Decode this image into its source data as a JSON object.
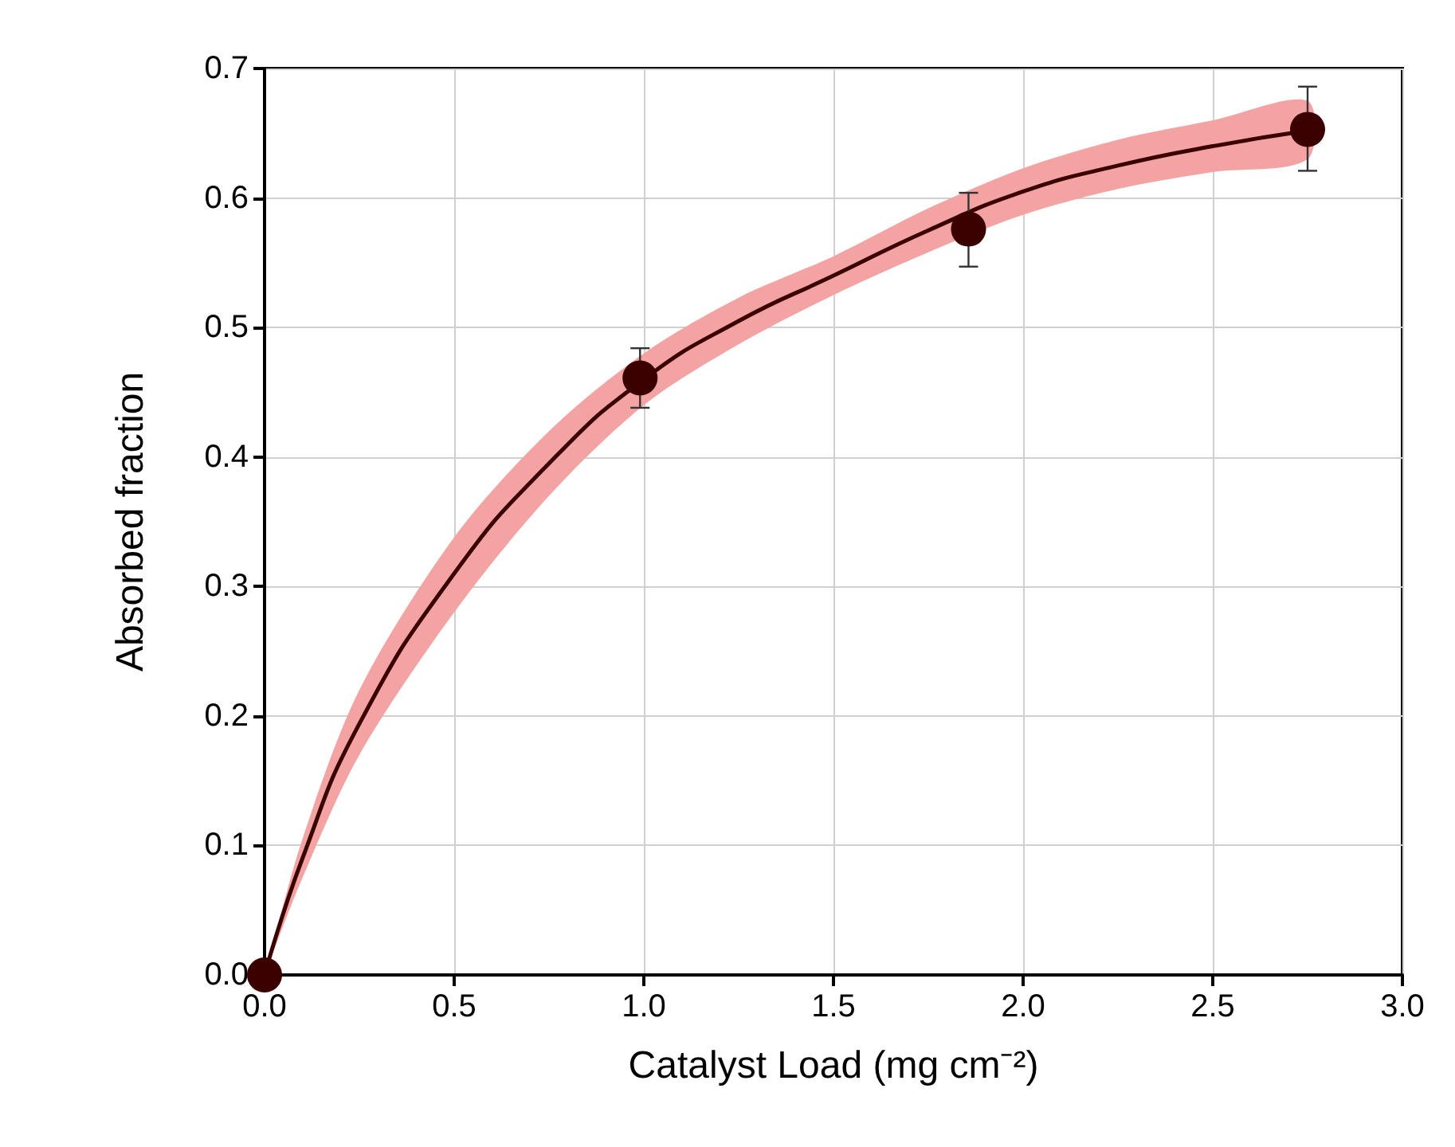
{
  "chart_data": {
    "type": "scatter",
    "xlabel": "Catalyst Load (mg cm⁻²)",
    "ylabel": "Absorbed fraction",
    "xlim": [
      0,
      3
    ],
    "xticks": [
      {
        "value": 0,
        "label": "0.0"
      },
      0.5,
      {
        "value": 1,
        "label": "1.0"
      },
      1.5,
      {
        "value": 2,
        "label": "2.0"
      },
      2.5,
      {
        "value": 3,
        "label": "3.0"
      }
    ],
    "ylim": [
      0,
      0.7
    ],
    "yticks": [
      {
        "value": 0,
        "label": "0.0"
      },
      0.1,
      0.2,
      0.3,
      0.4,
      0.5,
      0.6,
      0.7
    ],
    "grid": true,
    "marker": "circle",
    "series": [
      {
        "type": "line",
        "color": "#3b0000",
        "marker": "none",
        "line_style": "solid",
        "x": [
          0,
          0.1,
          0.25,
          0.5,
          0.75,
          1.0,
          1.25,
          1.5,
          1.75,
          2.0,
          2.25,
          2.5,
          2.75
        ],
        "values": [
          0,
          0.09,
          0.194,
          0.31,
          0.395,
          0.46,
          0.505,
          0.54,
          0.575,
          0.605,
          0.625,
          0.64,
          0.652
        ],
        "lower": [
          0,
          0.075,
          0.17,
          0.28,
          0.37,
          0.44,
          0.487,
          0.525,
          0.558,
          0.587,
          0.607,
          0.62,
          0.63
        ],
        "upper": [
          0,
          0.105,
          0.22,
          0.338,
          0.42,
          0.48,
          0.523,
          0.555,
          0.592,
          0.623,
          0.645,
          0.66,
          0.675
        ]
      },
      {
        "color": "#3b0000",
        "x": [
          0,
          0.99,
          1.856,
          2.75
        ],
        "values": [
          0,
          0.461,
          0.576,
          0.653
        ],
        "errors": [
          null,
          [
            0.438,
            0.484
          ],
          [
            0.547,
            0.604
          ],
          [
            0.621,
            0.686
          ]
        ]
      }
    ]
  }
}
